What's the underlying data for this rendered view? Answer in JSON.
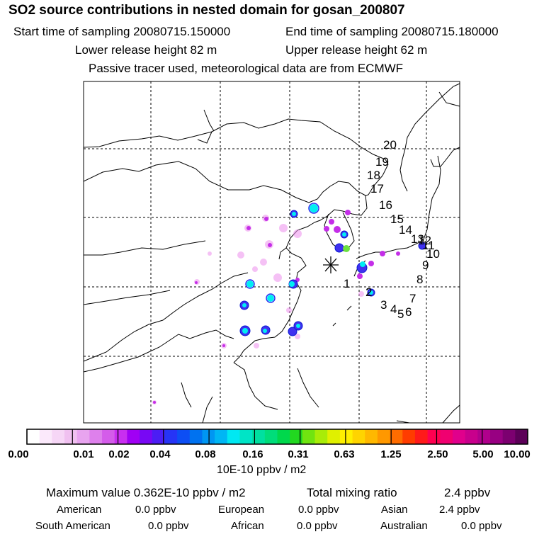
{
  "header": {
    "title": "SO2 source contributions in nested domain for gosan_200807",
    "start_time": "Start time of sampling 20080715.150000",
    "end_time": "End time of sampling 20080715.180000",
    "lower_height": "Lower release height   82 m",
    "upper_height": "Upper release height   62 m",
    "tracer_note": "Passive tracer used, meteorological data are from ECMWF"
  },
  "map": {
    "receptor_marker": "asterisk-icon",
    "trajectory_labels": [
      "1",
      "2",
      "3",
      "4",
      "5",
      "6",
      "7",
      "8",
      "9",
      "10",
      "11",
      "12",
      "13",
      "14",
      "15",
      "16",
      "17",
      "18",
      "19",
      "20"
    ]
  },
  "colorbar": {
    "tick_labels": [
      "0.00",
      "0.01",
      "0.02",
      "0.04",
      "0.08",
      "0.16",
      "0.31",
      "0.63",
      "1.25",
      "2.50",
      "5.00",
      "10.00"
    ],
    "colors": [
      "#ffffff",
      "#fbe9fb",
      "#f6d6f6",
      "#f0c0f0",
      "#e8a4ef",
      "#de80ec",
      "#d45cea",
      "#c92ef0",
      "#a000f4",
      "#7808f4",
      "#4c1df4",
      "#2634f6",
      "#0d4ef4",
      "#0072f0",
      "#0096f2",
      "#00b6f4",
      "#00e8f2",
      "#00e4c6",
      "#00e0a0",
      "#00dd7a",
      "#00d84c",
      "#22d820",
      "#70e410",
      "#a8ec08",
      "#e0f000",
      "#fff000",
      "#ffd400",
      "#ffb800",
      "#ff9800",
      "#ff6c00",
      "#ff3c00",
      "#ff1a1a",
      "#ff0050",
      "#f00070",
      "#e0008c",
      "#c8008c",
      "#b0008c",
      "#980082",
      "#7c0070",
      "#5c0058"
    ],
    "unit": "10E-10 ppbv / m2"
  },
  "summary": {
    "max_value": "Maximum value  0.362E-10 ppbv / m2",
    "total_mixing_label": "Total mixing ratio",
    "total_mixing_value": "2.4 ppbv",
    "regions": [
      {
        "name": "American",
        "value": "0.0 ppbv"
      },
      {
        "name": "European",
        "value": "0.0 ppbv"
      },
      {
        "name": "Asian",
        "value": "2.4 ppbv"
      },
      {
        "name": "South American",
        "value": "0.0 ppbv"
      },
      {
        "name": "African",
        "value": "0.0 ppbv"
      },
      {
        "name": "Australian",
        "value": "0.0 ppbv"
      }
    ]
  }
}
